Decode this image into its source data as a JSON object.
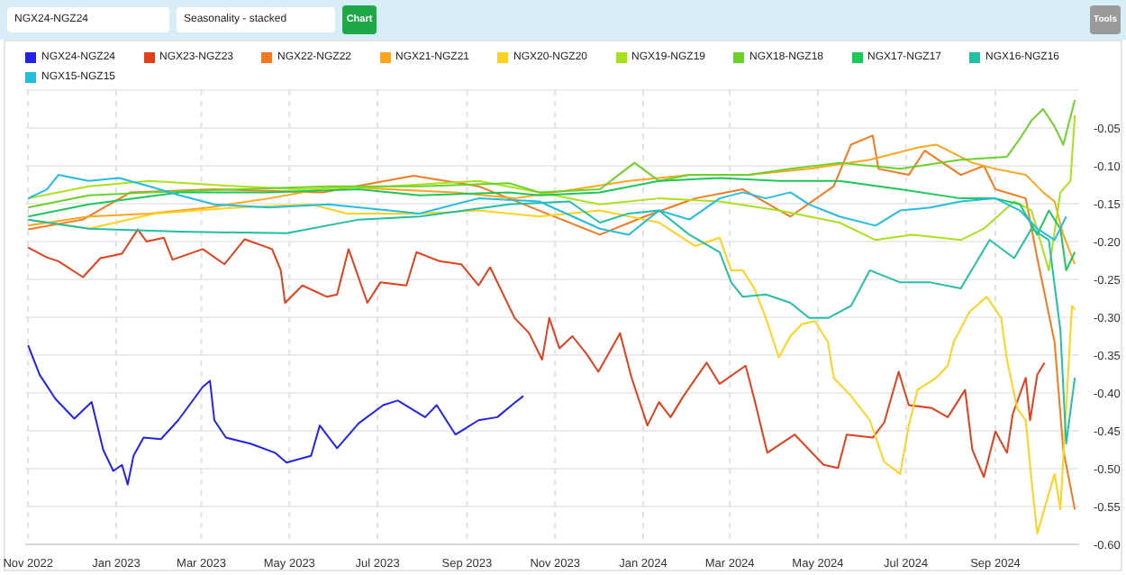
{
  "chart_data": {
    "type": "line",
    "annotations": [
      "NGX24-NGZ24",
      "Seasonality - stacked",
      "Chart",
      "Tools"
    ],
    "xlim": [
      "2022-10-30",
      "2024-10-29"
    ],
    "xticks": [
      {
        "value": "2022-11-01",
        "label": "Nov 2022"
      },
      {
        "value": "2023-01-01",
        "label": "Jan 2023"
      },
      {
        "value": "2023-03-01",
        "label": "Mar 2023"
      },
      {
        "value": "2023-05-01",
        "label": "May 2023"
      },
      {
        "value": "2023-07-01",
        "label": "Jul 2023"
      },
      {
        "value": "2023-09-01",
        "label": "Sep 2023"
      },
      {
        "value": "2023-11-01",
        "label": "Nov 2023"
      },
      {
        "value": "2024-01-01",
        "label": "Jan 2024"
      },
      {
        "value": "2024-03-01",
        "label": "Mar 2024"
      },
      {
        "value": "2024-05-01",
        "label": "May 2024"
      },
      {
        "value": "2024-07-01",
        "label": "Jul 2024"
      },
      {
        "value": "2024-09-01",
        "label": "Sep 2024"
      }
    ],
    "ylim": [
      -0.6,
      0
    ],
    "yticks": [
      {
        "value": -0.6,
        "label": "-0.60"
      },
      {
        "value": -0.55,
        "label": "-0.55"
      },
      {
        "value": -0.5,
        "label": "-0.50"
      },
      {
        "value": -0.45,
        "label": "-0.45"
      },
      {
        "value": -0.4,
        "label": "-0.40"
      },
      {
        "value": -0.35,
        "label": "-0.35"
      },
      {
        "value": -0.3,
        "label": "-0.30"
      },
      {
        "value": -0.25,
        "label": "-0.25"
      },
      {
        "value": -0.2,
        "label": "-0.20"
      },
      {
        "value": -0.15,
        "label": "-0.15"
      },
      {
        "value": -0.1,
        "label": "-0.10"
      },
      {
        "value": -0.05,
        "label": "-0.05"
      },
      {
        "value": 0,
        "label": null
      }
    ],
    "grid": true,
    "legend": "top",
    "series": [
      {
        "name": "NGX24-NGZ24",
        "color": "#2323f0",
        "x": [
          "2022-11-01",
          "2022-11-09",
          "2022-11-20",
          "2022-12-03",
          "2022-12-15",
          "2022-12-23",
          "2022-12-30",
          "2023-01-05",
          "2023-01-09",
          "2023-01-13",
          "2023-01-20",
          "2023-02-01",
          "2023-02-13",
          "2023-03-02",
          "2023-03-07",
          "2023-03-10",
          "2023-03-18",
          "2023-04-04",
          "2023-04-21",
          "2023-04-29",
          "2023-05-16",
          "2023-05-22",
          "2023-06-03",
          "2023-06-18",
          "2023-07-05",
          "2023-07-15",
          "2023-08-03",
          "2023-08-11",
          "2023-08-24",
          "2023-09-09",
          "2023-09-22",
          "2023-10-02",
          "2023-10-10"
        ],
        "values": [
          -0.337,
          -0.376,
          -0.408,
          -0.434,
          -0.412,
          -0.475,
          -0.503,
          -0.495,
          -0.521,
          -0.483,
          -0.459,
          -0.461,
          -0.436,
          -0.392,
          -0.384,
          -0.436,
          -0.459,
          -0.467,
          -0.479,
          -0.492,
          -0.483,
          -0.443,
          -0.473,
          -0.44,
          -0.416,
          -0.41,
          -0.432,
          -0.416,
          -0.455,
          -0.436,
          -0.432,
          -0.416,
          -0.404
        ]
      },
      {
        "name": "NGX23-NGZ23",
        "color": "#e2401c",
        "x": [
          "2022-11-01",
          "2022-11-14",
          "2022-11-22",
          "2022-12-09",
          "2022-12-21",
          "2023-01-05",
          "2023-01-16",
          "2023-01-22",
          "2023-02-03",
          "2023-02-09",
          "2023-03-02",
          "2023-03-17",
          "2023-03-31",
          "2023-04-19",
          "2023-04-25",
          "2023-04-28",
          "2023-05-10",
          "2023-05-27",
          "2023-06-03",
          "2023-06-11",
          "2023-06-24",
          "2023-07-03",
          "2023-07-21",
          "2023-07-28",
          "2023-08-13",
          "2023-08-28",
          "2023-09-09",
          "2023-09-17",
          "2023-10-04",
          "2023-10-14",
          "2023-10-23",
          "2023-10-28",
          "2023-11-04",
          "2023-11-13",
          "2023-11-23",
          "2023-12-01",
          "2023-12-16",
          "2023-12-24",
          "2024-01-04",
          "2024-01-12",
          "2024-01-20",
          "2024-01-29",
          "2024-02-14",
          "2024-02-23",
          "2024-03-12",
          "2024-03-18",
          "2024-03-27",
          "2024-04-15",
          "2024-05-05",
          "2024-05-15",
          "2024-05-21",
          "2024-06-08",
          "2024-06-16",
          "2024-06-26",
          "2024-07-03",
          "2024-07-19",
          "2024-07-30",
          "2024-08-11",
          "2024-08-16",
          "2024-08-24",
          "2024-09-01",
          "2024-09-09",
          "2024-09-13",
          "2024-09-22",
          "2024-09-25",
          "2024-09-30",
          "2024-10-05"
        ],
        "values": [
          -0.208,
          -0.221,
          -0.226,
          -0.247,
          -0.222,
          -0.216,
          -0.184,
          -0.2,
          -0.195,
          -0.224,
          -0.21,
          -0.23,
          -0.197,
          -0.21,
          -0.238,
          -0.281,
          -0.258,
          -0.273,
          -0.27,
          -0.21,
          -0.281,
          -0.254,
          -0.258,
          -0.214,
          -0.226,
          -0.23,
          -0.258,
          -0.234,
          -0.301,
          -0.321,
          -0.356,
          -0.301,
          -0.341,
          -0.325,
          -0.349,
          -0.372,
          -0.321,
          -0.38,
          -0.443,
          -0.412,
          -0.432,
          -0.404,
          -0.36,
          -0.388,
          -0.364,
          -0.408,
          -0.479,
          -0.455,
          -0.495,
          -0.499,
          -0.455,
          -0.459,
          -0.439,
          -0.372,
          -0.416,
          -0.42,
          -0.432,
          -0.396,
          -0.475,
          -0.511,
          -0.451,
          -0.479,
          -0.428,
          -0.38,
          -0.436,
          -0.376,
          -0.36
        ]
      },
      {
        "name": "NGX22-NGZ22",
        "color": "#f47a20",
        "x": [
          "2022-11-01",
          "2022-12-09",
          "2023-01-11",
          "2023-03-10",
          "2023-05-24",
          "2023-07-26",
          "2023-09-09",
          "2023-10-21",
          "2023-12-02",
          "2024-01-02",
          "2024-02-06",
          "2024-03-10",
          "2024-04-12",
          "2024-05-12",
          "2024-05-24",
          "2024-06-08",
          "2024-06-12",
          "2024-07-03",
          "2024-07-14",
          "2024-08-08",
          "2024-08-24",
          "2024-09-01",
          "2024-09-22",
          "2024-09-30",
          "2024-10-12",
          "2024-10-18",
          "2024-10-26"
        ],
        "values": [
          -0.184,
          -0.171,
          -0.135,
          -0.131,
          -0.135,
          -0.113,
          -0.127,
          -0.159,
          -0.191,
          -0.167,
          -0.143,
          -0.131,
          -0.167,
          -0.127,
          -0.072,
          -0.06,
          -0.104,
          -0.112,
          -0.08,
          -0.112,
          -0.1,
          -0.131,
          -0.143,
          -0.222,
          -0.333,
          -0.475,
          -0.554
        ]
      },
      {
        "name": "NGX21-NGZ21",
        "color": "#ffa51e",
        "x": [
          "2022-11-01",
          "2022-12-13",
          "2023-01-24",
          "2023-03-06",
          "2023-04-17",
          "2023-06-02",
          "2023-07-09",
          "2023-08-23",
          "2023-10-04",
          "2023-11-15",
          "2023-12-22",
          "2024-02-02",
          "2024-03-14",
          "2024-04-25",
          "2024-06-06",
          "2024-07-09",
          "2024-07-22",
          "2024-08-16",
          "2024-09-01",
          "2024-09-22",
          "2024-10-04",
          "2024-10-12",
          "2024-10-18",
          "2024-10-26"
        ],
        "values": [
          -0.179,
          -0.167,
          -0.163,
          -0.155,
          -0.143,
          -0.127,
          -0.131,
          -0.135,
          -0.143,
          -0.131,
          -0.12,
          -0.112,
          -0.112,
          -0.104,
          -0.092,
          -0.076,
          -0.072,
          -0.096,
          -0.104,
          -0.112,
          -0.135,
          -0.147,
          -0.191,
          -0.23
        ]
      },
      {
        "name": "NGX20-NGZ20",
        "color": "#ffd21e",
        "x": [
          "2022-11-01",
          "2022-12-13",
          "2023-01-28",
          "2023-03-27",
          "2023-05-16",
          "2023-06-10",
          "2023-07-30",
          "2023-09-09",
          "2023-10-21",
          "2023-12-02",
          "2024-01-12",
          "2024-02-06",
          "2024-02-23",
          "2024-03-02",
          "2024-03-10",
          "2024-03-18",
          "2024-03-26",
          "2024-04-04",
          "2024-04-12",
          "2024-04-20",
          "2024-04-29",
          "2024-05-08",
          "2024-05-12",
          "2024-05-24",
          "2024-06-06",
          "2024-06-16",
          "2024-06-27",
          "2024-07-03",
          "2024-07-09",
          "2024-07-22",
          "2024-07-30",
          "2024-08-03",
          "2024-08-14",
          "2024-08-26",
          "2024-09-05",
          "2024-09-09",
          "2024-09-16",
          "2024-09-22",
          "2024-09-26",
          "2024-09-30",
          "2024-10-06",
          "2024-10-12",
          "2024-10-16",
          "2024-10-20",
          "2024-10-24",
          "2024-10-26"
        ],
        "values": [
          -0.171,
          -0.183,
          -0.163,
          -0.155,
          -0.151,
          -0.163,
          -0.163,
          -0.159,
          -0.167,
          -0.159,
          -0.175,
          -0.206,
          -0.195,
          -0.238,
          -0.238,
          -0.262,
          -0.301,
          -0.353,
          -0.325,
          -0.309,
          -0.305,
          -0.333,
          -0.38,
          -0.404,
          -0.436,
          -0.491,
          -0.507,
          -0.443,
          -0.396,
          -0.38,
          -0.364,
          -0.333,
          -0.293,
          -0.273,
          -0.301,
          -0.356,
          -0.42,
          -0.436,
          -0.515,
          -0.586,
          -0.546,
          -0.507,
          -0.554,
          -0.42,
          -0.285,
          -0.29
        ]
      },
      {
        "name": "NGX19-NGZ19",
        "color": "#a8e21a",
        "x": [
          "2022-11-01",
          "2022-12-13",
          "2023-01-24",
          "2023-03-27",
          "2023-05-08",
          "2023-07-09",
          "2023-09-09",
          "2023-10-21",
          "2023-12-02",
          "2024-01-12",
          "2024-02-23",
          "2024-04-04",
          "2024-05-16",
          "2024-06-10",
          "2024-07-05",
          "2024-08-08",
          "2024-08-24",
          "2024-09-14",
          "2024-09-26",
          "2024-10-08",
          "2024-10-16",
          "2024-10-23",
          "2024-10-26"
        ],
        "values": [
          -0.143,
          -0.127,
          -0.12,
          -0.127,
          -0.131,
          -0.127,
          -0.12,
          -0.135,
          -0.151,
          -0.143,
          -0.147,
          -0.159,
          -0.175,
          -0.198,
          -0.191,
          -0.198,
          -0.183,
          -0.147,
          -0.159,
          -0.238,
          -0.135,
          -0.12,
          -0.033
        ]
      },
      {
        "name": "NGX18-NGZ18",
        "color": "#6cd12a",
        "x": [
          "2022-11-01",
          "2022-12-13",
          "2023-01-24",
          "2023-03-27",
          "2023-05-28",
          "2023-07-30",
          "2023-09-30",
          "2023-10-21",
          "2023-12-02",
          "2023-12-26",
          "2024-01-12",
          "2024-02-02",
          "2024-03-14",
          "2024-04-12",
          "2024-05-16",
          "2024-06-27",
          "2024-08-08",
          "2024-09-09",
          "2024-09-18",
          "2024-09-26",
          "2024-10-04",
          "2024-10-12",
          "2024-10-18",
          "2024-10-26"
        ],
        "values": [
          -0.155,
          -0.139,
          -0.135,
          -0.131,
          -0.127,
          -0.127,
          -0.123,
          -0.135,
          -0.131,
          -0.096,
          -0.12,
          -0.112,
          -0.112,
          -0.104,
          -0.096,
          -0.104,
          -0.092,
          -0.088,
          -0.064,
          -0.04,
          -0.025,
          -0.048,
          -0.072,
          -0.013
        ]
      },
      {
        "name": "NGX17-NGZ17",
        "color": "#1fc65a",
        "x": [
          "2022-11-01",
          "2022-12-13",
          "2023-02-14",
          "2023-04-17",
          "2023-06-18",
          "2023-07-30",
          "2023-09-30",
          "2023-10-21",
          "2023-12-02",
          "2024-01-12",
          "2024-02-23",
          "2024-04-04",
          "2024-05-16",
          "2024-06-27",
          "2024-08-08",
          "2024-09-01",
          "2024-09-18",
          "2024-09-30",
          "2024-10-08",
          "2024-10-16",
          "2024-10-20",
          "2024-10-26"
        ],
        "values": [
          -0.167,
          -0.151,
          -0.135,
          -0.135,
          -0.131,
          -0.139,
          -0.135,
          -0.139,
          -0.135,
          -0.12,
          -0.116,
          -0.12,
          -0.12,
          -0.131,
          -0.143,
          -0.143,
          -0.151,
          -0.191,
          -0.159,
          -0.183,
          -0.238,
          -0.214
        ]
      },
      {
        "name": "NGX16-NGZ16",
        "color": "#22bfa5",
        "x": [
          "2022-11-01",
          "2022-12-13",
          "2023-02-14",
          "2023-04-29",
          "2023-06-18",
          "2023-07-30",
          "2023-09-30",
          "2023-11-11",
          "2023-12-02",
          "2023-12-22",
          "2024-01-12",
          "2024-02-02",
          "2024-02-23",
          "2024-03-02",
          "2024-03-10",
          "2024-03-26",
          "2024-04-12",
          "2024-04-25",
          "2024-05-08",
          "2024-05-24",
          "2024-06-06",
          "2024-06-27",
          "2024-07-18",
          "2024-08-08",
          "2024-08-28",
          "2024-09-14",
          "2024-09-26",
          "2024-10-08",
          "2024-10-16",
          "2024-10-20",
          "2024-10-26"
        ],
        "values": [
          -0.171,
          -0.183,
          -0.187,
          -0.189,
          -0.171,
          -0.167,
          -0.151,
          -0.147,
          -0.175,
          -0.163,
          -0.159,
          -0.191,
          -0.214,
          -0.254,
          -0.273,
          -0.27,
          -0.281,
          -0.301,
          -0.301,
          -0.285,
          -0.238,
          -0.254,
          -0.254,
          -0.262,
          -0.198,
          -0.222,
          -0.183,
          -0.198,
          -0.317,
          -0.467,
          -0.38
        ]
      },
      {
        "name": "NGX15-NGZ15",
        "color": "#22bde0",
        "x": [
          "2022-11-01",
          "2022-11-14",
          "2022-11-22",
          "2022-12-13",
          "2023-01-03",
          "2023-01-24",
          "2023-02-14",
          "2023-03-10",
          "2023-04-17",
          "2023-05-28",
          "2023-07-09",
          "2023-07-30",
          "2023-09-09",
          "2023-10-21",
          "2023-12-02",
          "2023-12-22",
          "2024-01-12",
          "2024-02-02",
          "2024-02-23",
          "2024-03-10",
          "2024-03-26",
          "2024-04-12",
          "2024-04-25",
          "2024-05-16",
          "2024-06-10",
          "2024-06-27",
          "2024-07-18",
          "2024-08-08",
          "2024-09-01",
          "2024-09-18",
          "2024-09-30",
          "2024-10-12",
          "2024-10-20"
        ],
        "values": [
          -0.143,
          -0.131,
          -0.112,
          -0.12,
          -0.116,
          -0.127,
          -0.139,
          -0.151,
          -0.155,
          -0.151,
          -0.159,
          -0.163,
          -0.143,
          -0.147,
          -0.183,
          -0.191,
          -0.159,
          -0.171,
          -0.143,
          -0.135,
          -0.143,
          -0.135,
          -0.151,
          -0.167,
          -0.179,
          -0.159,
          -0.155,
          -0.147,
          -0.143,
          -0.159,
          -0.183,
          -0.198,
          -0.167
        ]
      }
    ]
  }
}
